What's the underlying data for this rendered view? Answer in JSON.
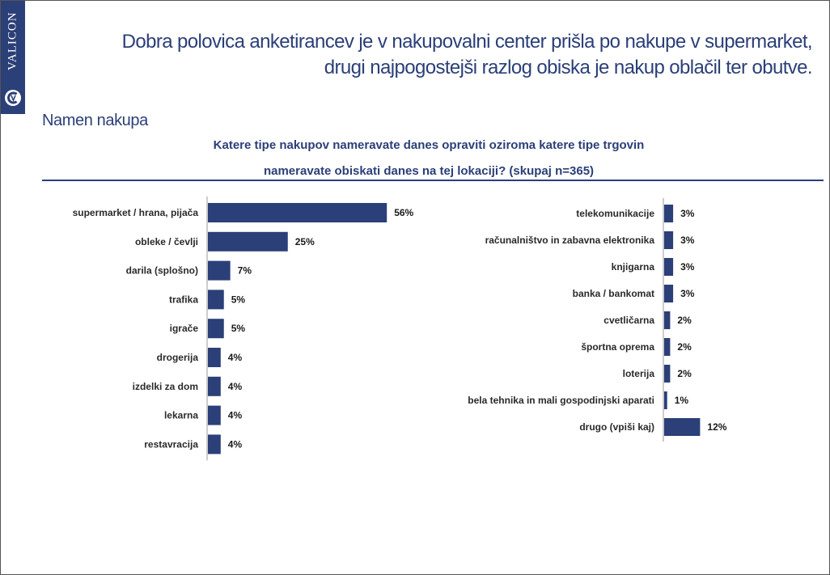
{
  "header": {
    "brand": "VALICON",
    "title_line1": "Dobra polovica anketirancev je v nakupovalni center prišla po nakupe v supermarket,",
    "title_line2": "drugi najpogostejši razlog obiska je nakup oblačil ter obutve.",
    "subtitle": "Namen nakupa",
    "question_line1": "Katere tipe nakupov nameravate danes opraviti oziroma katere tipe trgovin",
    "question_line2": "nameravate obiskati danes na tej lokaciji? (skupaj n=365)"
  },
  "colors": {
    "accent": "#2b3f78",
    "bar": "#2b3f78"
  },
  "chart_data": [
    {
      "type": "bar",
      "orientation": "horizontal",
      "unit": "%",
      "xlim": [
        0,
        100
      ],
      "grid": false,
      "categories": [
        "supermarket / hrana, pijača",
        "obleke / čevlji",
        "darila (splošno)",
        "trafika",
        "igrače",
        "drogerija",
        "izdelki za dom",
        "lekarna",
        "restavracija"
      ],
      "values": [
        56,
        25,
        7,
        5,
        5,
        4,
        4,
        4,
        4
      ]
    },
    {
      "type": "bar",
      "orientation": "horizontal",
      "unit": "%",
      "xlim": [
        0,
        100
      ],
      "grid": false,
      "categories": [
        "telekomunikacije",
        "računalništvo in zabavna elektronika",
        "knjigarna",
        "banka / bankomat",
        "cvetličarna",
        "športna oprema",
        "loterija",
        "bela tehnika in mali gospodinjski aparati",
        "drugo (vpiši kaj)"
      ],
      "values": [
        3,
        3,
        3,
        3,
        2,
        2,
        2,
        1,
        12
      ]
    }
  ]
}
